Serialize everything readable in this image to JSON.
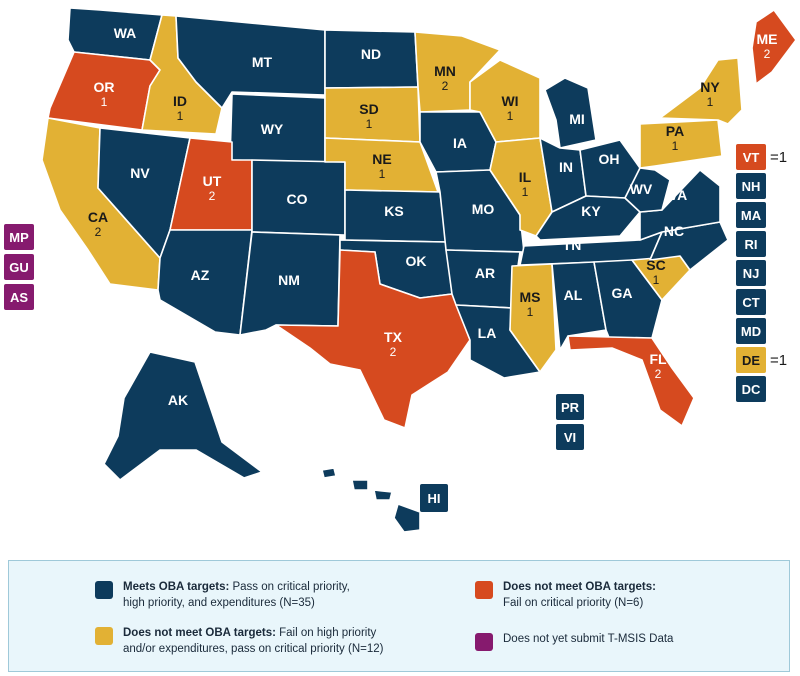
{
  "colors": {
    "meets": "#0d3b5c",
    "fail_high": "#e2b134",
    "fail_critical": "#d64a1f",
    "no_tmsis": "#861a6e"
  },
  "states": [
    {
      "abbr": "WA",
      "status": "meets",
      "count": ""
    },
    {
      "abbr": "OR",
      "status": "fail_critical",
      "count": "1"
    },
    {
      "abbr": "CA",
      "status": "fail_high",
      "count": "2"
    },
    {
      "abbr": "ID",
      "status": "fail_high",
      "count": "1"
    },
    {
      "abbr": "NV",
      "status": "meets",
      "count": ""
    },
    {
      "abbr": "MT",
      "status": "meets",
      "count": ""
    },
    {
      "abbr": "WY",
      "status": "meets",
      "count": ""
    },
    {
      "abbr": "UT",
      "status": "fail_critical",
      "count": "2"
    },
    {
      "abbr": "AZ",
      "status": "meets",
      "count": ""
    },
    {
      "abbr": "CO",
      "status": "meets",
      "count": ""
    },
    {
      "abbr": "NM",
      "status": "meets",
      "count": ""
    },
    {
      "abbr": "ND",
      "status": "meets",
      "count": ""
    },
    {
      "abbr": "SD",
      "status": "fail_high",
      "count": "1"
    },
    {
      "abbr": "NE",
      "status": "fail_high",
      "count": "1"
    },
    {
      "abbr": "KS",
      "status": "meets",
      "count": ""
    },
    {
      "abbr": "OK",
      "status": "meets",
      "count": ""
    },
    {
      "abbr": "TX",
      "status": "fail_critical",
      "count": "2"
    },
    {
      "abbr": "MN",
      "status": "fail_high",
      "count": "2"
    },
    {
      "abbr": "IA",
      "status": "meets",
      "count": ""
    },
    {
      "abbr": "MO",
      "status": "meets",
      "count": ""
    },
    {
      "abbr": "AR",
      "status": "meets",
      "count": ""
    },
    {
      "abbr": "LA",
      "status": "meets",
      "count": ""
    },
    {
      "abbr": "WI",
      "status": "fail_high",
      "count": "1"
    },
    {
      "abbr": "IL",
      "status": "fail_high",
      "count": "1"
    },
    {
      "abbr": "MI",
      "status": "meets",
      "count": ""
    },
    {
      "abbr": "IN",
      "status": "meets",
      "count": ""
    },
    {
      "abbr": "OH",
      "status": "meets",
      "count": ""
    },
    {
      "abbr": "KY",
      "status": "meets",
      "count": ""
    },
    {
      "abbr": "TN",
      "status": "meets",
      "count": ""
    },
    {
      "abbr": "MS",
      "status": "fail_high",
      "count": "1"
    },
    {
      "abbr": "AL",
      "status": "meets",
      "count": ""
    },
    {
      "abbr": "GA",
      "status": "meets",
      "count": ""
    },
    {
      "abbr": "FL",
      "status": "fail_critical",
      "count": "2"
    },
    {
      "abbr": "SC",
      "status": "fail_high",
      "count": "1"
    },
    {
      "abbr": "NC",
      "status": "meets",
      "count": ""
    },
    {
      "abbr": "VA",
      "status": "meets",
      "count": ""
    },
    {
      "abbr": "WV",
      "status": "meets",
      "count": ""
    },
    {
      "abbr": "PA",
      "status": "fail_high",
      "count": "1"
    },
    {
      "abbr": "NY",
      "status": "fail_high",
      "count": "1"
    },
    {
      "abbr": "ME",
      "status": "fail_critical",
      "count": "2"
    },
    {
      "abbr": "AK",
      "status": "meets",
      "count": ""
    },
    {
      "abbr": "HI",
      "status": "meets",
      "count": ""
    }
  ],
  "small_states": [
    {
      "abbr": "VT",
      "status": "fail_critical",
      "suffix": "=1"
    },
    {
      "abbr": "NH",
      "status": "meets",
      "suffix": ""
    },
    {
      "abbr": "MA",
      "status": "meets",
      "suffix": ""
    },
    {
      "abbr": "RI",
      "status": "meets",
      "suffix": ""
    },
    {
      "abbr": "NJ",
      "status": "meets",
      "suffix": ""
    },
    {
      "abbr": "CT",
      "status": "meets",
      "suffix": ""
    },
    {
      "abbr": "MD",
      "status": "meets",
      "suffix": ""
    },
    {
      "abbr": "DE",
      "status": "fail_high",
      "suffix": "=1"
    },
    {
      "abbr": "DC",
      "status": "meets",
      "suffix": ""
    }
  ],
  "territories_left": [
    {
      "abbr": "MP",
      "status": "no_tmsis"
    },
    {
      "abbr": "GU",
      "status": "no_tmsis"
    },
    {
      "abbr": "AS",
      "status": "no_tmsis"
    }
  ],
  "territories_caribbean": [
    {
      "abbr": "PR",
      "status": "meets"
    },
    {
      "abbr": "VI",
      "status": "meets"
    }
  ],
  "legend": {
    "meets_title": "Meets OBA targets:",
    "meets_desc_1": " Pass on critical priority,",
    "meets_desc_2": "high priority, and expenditures (N=35)",
    "fail_high_title": "Does not meet OBA targets:",
    "fail_high_desc_1": " Fail on high priority",
    "fail_high_desc_2": "and/or expenditures, pass on critical priority (N=12)",
    "fail_critical_title": "Does not meet OBA targets:",
    "fail_critical_desc": "Fail on critical priority (N=6)",
    "no_tmsis_desc": "Does not yet submit T-MSIS Data"
  }
}
